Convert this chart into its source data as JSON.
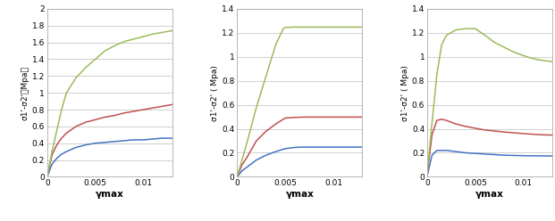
{
  "panels": [
    {
      "ylabel": "σ1'-σ2'（Mpa）",
      "ylabel_display": "σ1'-σ2' ( Mpa)",
      "xlabel": "γmax",
      "ylim": [
        0,
        2.0
      ],
      "yticks": [
        0,
        0.2,
        0.4,
        0.6,
        0.8,
        1.0,
        1.2,
        1.4,
        1.6,
        1.8,
        2.0
      ],
      "yticklabels": [
        "0",
        "0.2",
        "0.4",
        "0.6",
        "0.8",
        "1",
        "1.2",
        "1.4",
        "1.6",
        "1.8",
        "2"
      ],
      "xlim": [
        0,
        0.013
      ],
      "xticks": [
        0,
        0.005,
        0.01
      ],
      "xticklabels": [
        "0",
        "0.005",
        "0.01"
      ],
      "curves": {
        "blue": {
          "x": [
            0,
            0.0005,
            0.001,
            0.0015,
            0.002,
            0.003,
            0.004,
            0.005,
            0.006,
            0.007,
            0.008,
            0.009,
            0.01,
            0.011,
            0.012,
            0.013
          ],
          "y": [
            0,
            0.15,
            0.22,
            0.27,
            0.3,
            0.35,
            0.38,
            0.4,
            0.41,
            0.42,
            0.43,
            0.44,
            0.44,
            0.45,
            0.46,
            0.46
          ]
        },
        "red": {
          "x": [
            0,
            0.0005,
            0.001,
            0.0015,
            0.002,
            0.003,
            0.004,
            0.005,
            0.006,
            0.007,
            0.008,
            0.009,
            0.01,
            0.011,
            0.012,
            0.013
          ],
          "y": [
            0,
            0.26,
            0.38,
            0.46,
            0.52,
            0.6,
            0.65,
            0.68,
            0.71,
            0.73,
            0.76,
            0.78,
            0.8,
            0.82,
            0.84,
            0.86
          ]
        },
        "green": {
          "x": [
            0,
            0.0005,
            0.001,
            0.0015,
            0.002,
            0.003,
            0.004,
            0.005,
            0.006,
            0.007,
            0.008,
            0.009,
            0.01,
            0.011,
            0.012,
            0.013
          ],
          "y": [
            0,
            0.3,
            0.55,
            0.8,
            1.0,
            1.18,
            1.3,
            1.4,
            1.5,
            1.56,
            1.61,
            1.64,
            1.67,
            1.7,
            1.72,
            1.74
          ]
        }
      }
    },
    {
      "ylabel": "σ1'-σ2' ( Mpa)",
      "xlabel": "γmax",
      "ylim": [
        0,
        1.4
      ],
      "yticks": [
        0,
        0.2,
        0.4,
        0.6,
        0.8,
        1.0,
        1.2,
        1.4
      ],
      "yticklabels": [
        "0",
        "0.2",
        "0.4",
        "0.6",
        "0.8",
        "1",
        "1.2",
        "1.4"
      ],
      "xlim": [
        0,
        0.013
      ],
      "xticks": [
        0,
        0.005,
        0.01
      ],
      "xticklabels": [
        "0",
        "0.005",
        "0.01"
      ],
      "curves": {
        "blue": {
          "x": [
            0,
            0.0005,
            0.001,
            0.0015,
            0.002,
            0.003,
            0.004,
            0.005,
            0.006,
            0.007,
            0.008,
            0.009,
            0.01,
            0.011,
            0.012,
            0.013
          ],
          "y": [
            0,
            0.05,
            0.08,
            0.11,
            0.14,
            0.18,
            0.21,
            0.235,
            0.245,
            0.248,
            0.248,
            0.248,
            0.248,
            0.248,
            0.248,
            0.248
          ]
        },
        "red": {
          "x": [
            0,
            0.0005,
            0.001,
            0.0015,
            0.002,
            0.003,
            0.004,
            0.005,
            0.006,
            0.007,
            0.008,
            0.009,
            0.01,
            0.011,
            0.012,
            0.013
          ],
          "y": [
            0,
            0.1,
            0.16,
            0.23,
            0.3,
            0.38,
            0.44,
            0.49,
            0.495,
            0.498,
            0.498,
            0.498,
            0.498,
            0.498,
            0.498,
            0.498
          ]
        },
        "green": {
          "x": [
            0,
            0.0005,
            0.001,
            0.0015,
            0.002,
            0.003,
            0.004,
            0.0048,
            0.005,
            0.006,
            0.007,
            0.008,
            0.009,
            0.01,
            0.011,
            0.012,
            0.013
          ],
          "y": [
            0,
            0.14,
            0.28,
            0.43,
            0.58,
            0.84,
            1.1,
            1.235,
            1.245,
            1.248,
            1.248,
            1.248,
            1.248,
            1.248,
            1.248,
            1.248,
            1.248
          ]
        }
      }
    },
    {
      "ylabel": "σ1'-σ2' ( Mpa)",
      "xlabel": "γmax",
      "ylim": [
        0,
        1.4
      ],
      "yticks": [
        0,
        0.2,
        0.4,
        0.6,
        0.8,
        1.0,
        1.2,
        1.4
      ],
      "yticklabels": [
        "0",
        "0.2",
        "0.4",
        "0.6",
        "0.8",
        "1",
        "1.2",
        "1.4"
      ],
      "xlim": [
        0,
        0.013
      ],
      "xticks": [
        0,
        0.005,
        0.01
      ],
      "xticklabels": [
        "0",
        "0.005",
        "0.01"
      ],
      "curves": {
        "blue": {
          "x": [
            0,
            0.0005,
            0.001,
            0.0015,
            0.002,
            0.003,
            0.004,
            0.005,
            0.006,
            0.007,
            0.008,
            0.009,
            0.01,
            0.011,
            0.012,
            0.013
          ],
          "y": [
            0.01,
            0.18,
            0.22,
            0.22,
            0.22,
            0.21,
            0.2,
            0.195,
            0.19,
            0.185,
            0.18,
            0.178,
            0.176,
            0.175,
            0.174,
            0.174
          ]
        },
        "red": {
          "x": [
            0,
            0.0005,
            0.001,
            0.0015,
            0.002,
            0.003,
            0.004,
            0.005,
            0.006,
            0.007,
            0.008,
            0.009,
            0.01,
            0.011,
            0.012,
            0.013
          ],
          "y": [
            0.02,
            0.35,
            0.47,
            0.48,
            0.47,
            0.44,
            0.42,
            0.405,
            0.39,
            0.382,
            0.373,
            0.367,
            0.36,
            0.355,
            0.35,
            0.348
          ]
        },
        "green": {
          "x": [
            0,
            0.0005,
            0.001,
            0.0015,
            0.002,
            0.003,
            0.004,
            0.005,
            0.006,
            0.007,
            0.008,
            0.009,
            0.01,
            0.011,
            0.012,
            0.013
          ],
          "y": [
            0.03,
            0.45,
            0.85,
            1.1,
            1.18,
            1.225,
            1.235,
            1.235,
            1.18,
            1.12,
            1.08,
            1.04,
            1.01,
            0.985,
            0.97,
            0.96
          ]
        }
      }
    }
  ],
  "colors": {
    "blue": "#4472c4",
    "red": "#c0504d",
    "green": "#9bbb59"
  },
  "background": "#ffffff",
  "grid_color": "#c8c8c8",
  "spine_color": "#aaaaaa"
}
